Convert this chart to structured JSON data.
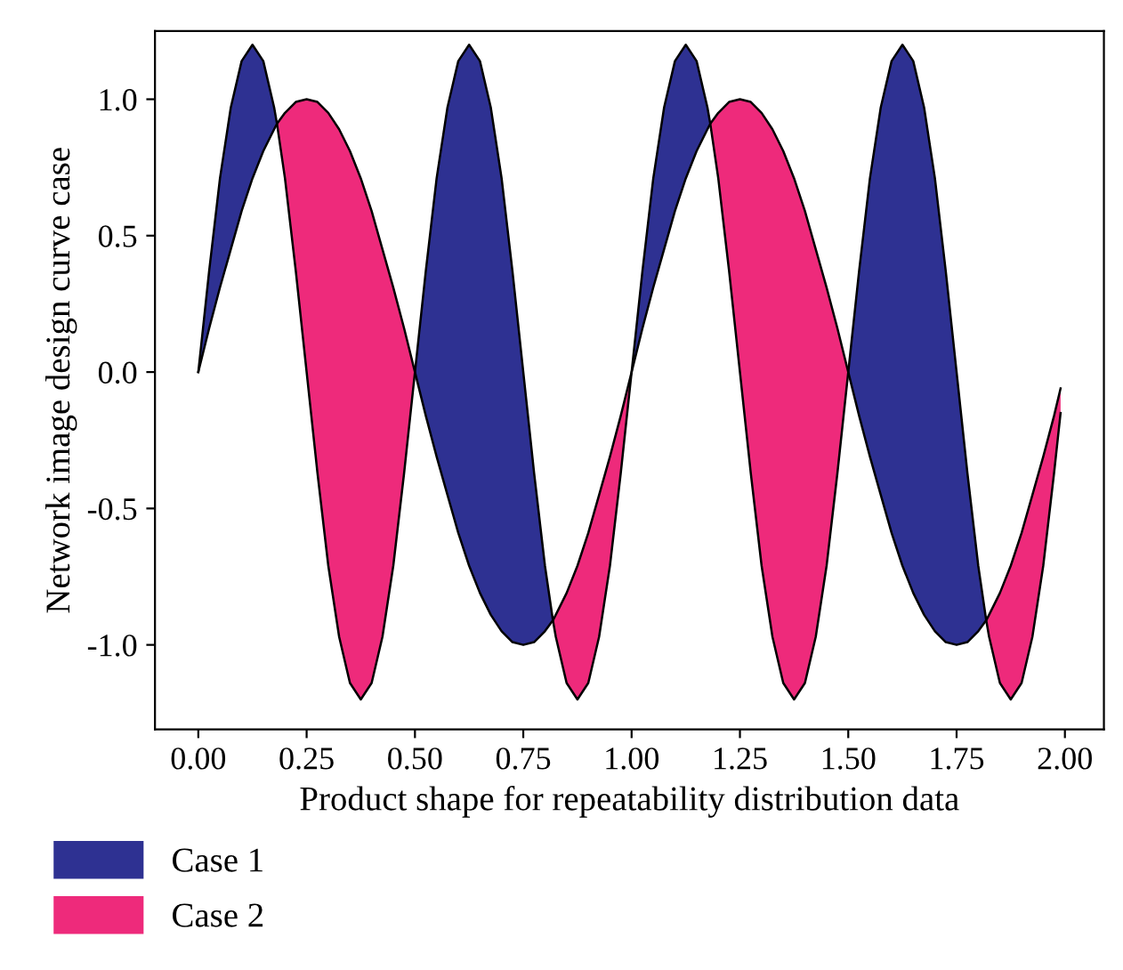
{
  "chart_data": {
    "type": "line",
    "xlabel": "Product shape for repeatability distribution data",
    "ylabel": "Network image design curve case",
    "x": [
      0,
      0.025,
      0.05,
      0.075,
      0.1,
      0.125,
      0.15,
      0.175,
      0.1816,
      0.2,
      0.225,
      0.25,
      0.275,
      0.3,
      0.325,
      0.35,
      0.375,
      0.4,
      0.425,
      0.45,
      0.475,
      0.5,
      0.525,
      0.55,
      0.575,
      0.6,
      0.625,
      0.65,
      0.675,
      0.7,
      0.725,
      0.75,
      0.775,
      0.8,
      0.8184,
      0.825,
      0.85,
      0.875,
      0.9,
      0.925,
      0.95,
      0.975,
      1.0,
      1.025,
      1.05,
      1.075,
      1.1,
      1.125,
      1.15,
      1.175,
      1.1816,
      1.2,
      1.225,
      1.25,
      1.275,
      1.3,
      1.325,
      1.35,
      1.375,
      1.4,
      1.425,
      1.45,
      1.475,
      1.5,
      1.525,
      1.55,
      1.575,
      1.6,
      1.625,
      1.65,
      1.675,
      1.7,
      1.725,
      1.75,
      1.775,
      1.8,
      1.8184,
      1.825,
      1.85,
      1.875,
      1.9,
      1.925,
      1.95,
      1.975,
      1.99
    ],
    "series": [
      {
        "color": "#000000",
        "values": [
          0,
          0.16,
          0.31,
          0.45,
          0.59,
          0.71,
          0.81,
          0.89,
          0.91,
          0.95,
          0.99,
          1,
          0.99,
          0.95,
          0.89,
          0.81,
          0.71,
          0.59,
          0.45,
          0.31,
          0.16,
          0,
          -0.16,
          -0.31,
          -0.45,
          -0.59,
          -0.71,
          -0.81,
          -0.89,
          -0.95,
          -0.99,
          -1,
          -0.99,
          -0.95,
          -0.91,
          -0.89,
          -0.81,
          -0.71,
          -0.59,
          -0.45,
          -0.31,
          -0.16,
          0,
          0.16,
          0.31,
          0.45,
          0.59,
          0.71,
          0.81,
          0.89,
          0.91,
          0.95,
          0.99,
          1,
          0.99,
          0.95,
          0.89,
          0.81,
          0.71,
          0.59,
          0.45,
          0.31,
          0.16,
          0,
          -0.16,
          -0.31,
          -0.45,
          -0.59,
          -0.71,
          -0.81,
          -0.89,
          -0.95,
          -0.99,
          -1,
          -0.99,
          -0.95,
          -0.91,
          -0.89,
          -0.81,
          -0.71,
          -0.59,
          -0.45,
          -0.31,
          -0.16,
          -0.06
        ]
      },
      {
        "color": "#000000",
        "values": [
          0,
          0.37,
          0.71,
          0.97,
          1.14,
          1.2,
          1.14,
          0.97,
          0.91,
          0.71,
          0.37,
          0,
          -0.37,
          -0.71,
          -0.97,
          -1.14,
          -1.2,
          -1.14,
          -0.97,
          -0.71,
          -0.37,
          0,
          0.37,
          0.71,
          0.97,
          1.14,
          1.2,
          1.14,
          0.97,
          0.71,
          0.37,
          0,
          -0.37,
          -0.71,
          -0.91,
          -0.97,
          -1.14,
          -1.2,
          -1.14,
          -0.97,
          -0.71,
          -0.37,
          0,
          0.37,
          0.71,
          0.97,
          1.14,
          1.2,
          1.14,
          0.97,
          0.91,
          0.71,
          0.37,
          0,
          -0.37,
          -0.71,
          -0.97,
          -1.14,
          -1.2,
          -1.14,
          -0.97,
          -0.71,
          -0.37,
          0,
          0.37,
          0.71,
          0.97,
          1.14,
          1.2,
          1.14,
          0.97,
          0.71,
          0.37,
          0,
          -0.37,
          -0.71,
          -0.91,
          -0.97,
          -1.14,
          -1.2,
          -1.14,
          -0.97,
          -0.71,
          -0.37,
          -0.15
        ]
      },
      {
        "name": "Case 1",
        "color": "#2e3192",
        "values": [
          null,
          null,
          null,
          null,
          null,
          null,
          null,
          null,
          null,
          null,
          null,
          null,
          null,
          null,
          null,
          null,
          null,
          null,
          null,
          null,
          null,
          null,
          null,
          null,
          null,
          null,
          null,
          null,
          null,
          null,
          null,
          null,
          null,
          null,
          null,
          null,
          null,
          null,
          null,
          null,
          null,
          null,
          null,
          null,
          null,
          null,
          null,
          null,
          null,
          null,
          null,
          null,
          null,
          null,
          null,
          null,
          null,
          null,
          null,
          null,
          null,
          null,
          null,
          null,
          null,
          null,
          null,
          null,
          null,
          null,
          null,
          null,
          null,
          null,
          null,
          null,
          null,
          null,
          null,
          null,
          null,
          null,
          null,
          null,
          null
        ],
        "upper": [
          0,
          0.37,
          0.71,
          0.97,
          1.14,
          1.2,
          1.14,
          0.97,
          0.91,
          null,
          null,
          null,
          null,
          null,
          null,
          null,
          null,
          null,
          null,
          null,
          null,
          0,
          0.37,
          0.71,
          0.97,
          1.14,
          1.2,
          1.14,
          0.97,
          0.71,
          0.37,
          0,
          -0.37,
          -0.71,
          -0.91,
          null,
          null,
          null,
          null,
          null,
          null,
          null,
          0,
          0.37,
          0.71,
          0.97,
          1.14,
          1.2,
          1.14,
          0.97,
          0.91,
          null,
          null,
          null,
          null,
          null,
          null,
          null,
          null,
          null,
          null,
          null,
          null,
          0,
          0.37,
          0.71,
          0.97,
          1.14,
          1.2,
          1.14,
          0.97,
          0.71,
          0.37,
          0,
          -0.37,
          -0.71,
          -0.91,
          null,
          null,
          null,
          null,
          null,
          null,
          null,
          null
        ],
        "lower": [
          0,
          0.16,
          0.31,
          0.45,
          0.59,
          0.71,
          0.81,
          0.89,
          0.91,
          null,
          null,
          null,
          null,
          null,
          null,
          null,
          null,
          null,
          null,
          null,
          null,
          0,
          -0.16,
          -0.31,
          -0.45,
          -0.59,
          -0.71,
          -0.81,
          -0.89,
          -0.95,
          -0.99,
          -1,
          -0.99,
          -0.95,
          -0.91,
          null,
          null,
          null,
          null,
          null,
          null,
          null,
          0,
          0.16,
          0.31,
          0.45,
          0.59,
          0.71,
          0.81,
          0.89,
          0.91,
          null,
          null,
          null,
          null,
          null,
          null,
          null,
          null,
          null,
          null,
          null,
          null,
          0,
          -0.16,
          -0.31,
          -0.45,
          -0.59,
          -0.71,
          -0.81,
          -0.89,
          -0.95,
          -0.99,
          -1,
          -0.99,
          -0.95,
          -0.91,
          null,
          null,
          null,
          null,
          null,
          null,
          null,
          null
        ]
      },
      {
        "name": "Case 2",
        "color": "#ee2a7b",
        "values": [
          null,
          null,
          null,
          null,
          null,
          null,
          null,
          null,
          null,
          null,
          null,
          null,
          null,
          null,
          null,
          null,
          null,
          null,
          null,
          null,
          null,
          null,
          null,
          null,
          null,
          null,
          null,
          null,
          null,
          null,
          null,
          null,
          null,
          null,
          null,
          null,
          null,
          null,
          null,
          null,
          null,
          null,
          null,
          null,
          null,
          null,
          null,
          null,
          null,
          null,
          null,
          null,
          null,
          null,
          null,
          null,
          null,
          null,
          null,
          null,
          null,
          null,
          null,
          null,
          null,
          null,
          null,
          null,
          null,
          null,
          null,
          null,
          null,
          null,
          null,
          null,
          null,
          null,
          null,
          null,
          null,
          null,
          null,
          null,
          null
        ],
        "upper": [
          null,
          null,
          null,
          null,
          null,
          null,
          null,
          null,
          0.91,
          0.95,
          0.99,
          1,
          0.99,
          0.95,
          0.89,
          0.81,
          0.71,
          0.59,
          0.45,
          0.31,
          0.16,
          0,
          null,
          null,
          null,
          null,
          null,
          null,
          null,
          null,
          null,
          null,
          null,
          null,
          -0.91,
          -0.89,
          -0.81,
          -0.71,
          -0.59,
          -0.45,
          -0.31,
          -0.16,
          0,
          null,
          null,
          null,
          null,
          null,
          null,
          null,
          0.91,
          0.95,
          0.99,
          1,
          0.99,
          0.95,
          0.89,
          0.81,
          0.71,
          0.59,
          0.45,
          0.31,
          0.16,
          0,
          null,
          null,
          null,
          null,
          null,
          null,
          null,
          null,
          null,
          null,
          null,
          null,
          -0.91,
          -0.89,
          -0.81,
          -0.71,
          -0.59,
          -0.45,
          -0.31,
          -0.16,
          -0.06
        ],
        "lower": [
          null,
          null,
          null,
          null,
          null,
          null,
          null,
          null,
          0.91,
          0.71,
          0.37,
          0,
          -0.37,
          -0.71,
          -0.97,
          -1.14,
          -1.2,
          -1.14,
          -0.97,
          -0.71,
          -0.37,
          0,
          null,
          null,
          null,
          null,
          null,
          null,
          null,
          null,
          null,
          null,
          null,
          null,
          -0.91,
          -0.97,
          -1.14,
          -1.2,
          -1.14,
          -0.97,
          -0.71,
          -0.37,
          0,
          null,
          null,
          null,
          null,
          null,
          null,
          null,
          0.91,
          0.71,
          0.37,
          0,
          -0.37,
          -0.71,
          -0.97,
          -1.14,
          -1.2,
          -1.14,
          -0.97,
          -0.71,
          -0.37,
          0,
          null,
          null,
          null,
          null,
          null,
          null,
          null,
          null,
          null,
          null,
          null,
          null,
          -0.91,
          -0.97,
          -1.14,
          -1.2,
          -1.14,
          -0.97,
          -0.71,
          -0.37,
          -0.15
        ]
      }
    ],
    "xlim": [
      -0.1,
      2.09
    ],
    "ylim": [
      -1.31,
      1.25
    ],
    "xticks": [
      {
        "value": 0,
        "label": "0.00"
      },
      {
        "value": 0.25,
        "label": "0.25"
      },
      {
        "value": 0.5,
        "label": "0.50"
      },
      {
        "value": 0.75,
        "label": "0.75"
      },
      {
        "value": 1,
        "label": "1.00"
      },
      {
        "value": 1.25,
        "label": "1.25"
      },
      {
        "value": 1.5,
        "label": "1.50"
      },
      {
        "value": 1.75,
        "label": "1.75"
      },
      {
        "value": 2,
        "label": "2.00"
      }
    ],
    "yticks": [
      {
        "value": -1,
        "label": "-1.0"
      },
      {
        "value": -0.5,
        "label": "-0.5"
      },
      {
        "value": 0,
        "label": "0.0"
      },
      {
        "value": 0.5,
        "label": "0.5"
      },
      {
        "value": 1,
        "label": "1.0"
      }
    ],
    "grid": false,
    "legend": "bottom left"
  }
}
